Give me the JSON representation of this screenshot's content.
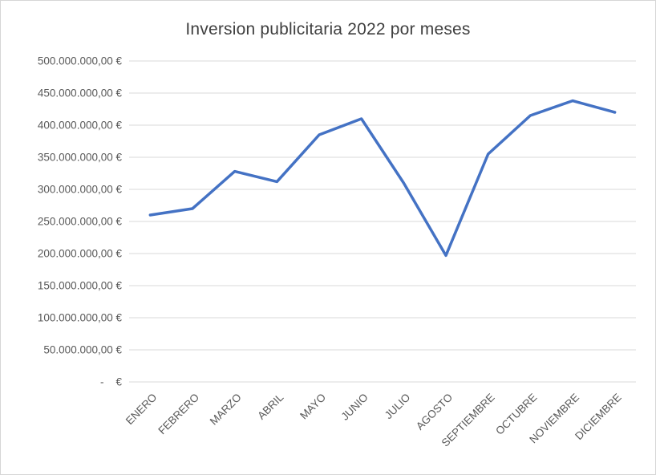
{
  "page": {
    "background": "#FFFFFF",
    "border_color": "#D6D6D6"
  },
  "chart_data": {
    "type": "line",
    "title": "Inversion publicitaria 2022 por meses",
    "categories": [
      "ENERO",
      "FEBRERO",
      "MARZO",
      "ABRIL",
      "MAYO",
      "JUNIO",
      "JULIO",
      "AGOSTO",
      "SEPTIEMBRE",
      "OCTUBRE",
      "NOVIEMBRE",
      "DICIEMBRE"
    ],
    "series": [
      {
        "name": "Inversion publicitaria 2022",
        "color": "#4472C4",
        "values": [
          260000000,
          270000000,
          328000000,
          312000000,
          385000000,
          410000000,
          310000000,
          197000000,
          355000000,
          415000000,
          438000000,
          420000000
        ]
      }
    ],
    "ylim": [
      0,
      500000000
    ],
    "ytick_step": 50000000,
    "ytick_labels": [
      "-    €",
      "50.000.000,00 €",
      "100.000.000,00 €",
      "150.000.000,00 €",
      "200.000.000,00 €",
      "250.000.000,00 €",
      "300.000.000,00 €",
      "350.000.000,00 €",
      "400.000.000,00 €",
      "450.000.000,00 €",
      "500.000.000,00 €"
    ],
    "grid": true,
    "legend": "none",
    "gridline_color": "#D9D9D9",
    "tick_text_color": "#595959",
    "title_color": "#404040"
  }
}
